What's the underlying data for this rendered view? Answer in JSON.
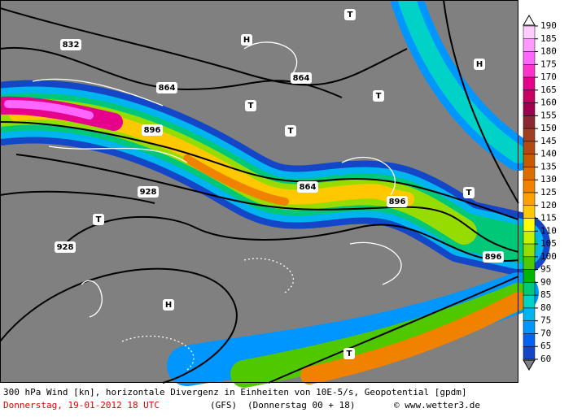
{
  "map_labels": [
    "832",
    "864",
    "864",
    "896",
    "864",
    "896",
    "928",
    "928",
    "896",
    "H",
    "H",
    "H",
    "T",
    "T",
    "T",
    "T",
    "T",
    "T",
    "T"
  ],
  "legend": {
    "levels": [
      190,
      185,
      180,
      175,
      170,
      165,
      160,
      155,
      150,
      145,
      140,
      135,
      130,
      125,
      120,
      115,
      110,
      105,
      100,
      95,
      90,
      85,
      80,
      75,
      70,
      65,
      60
    ],
    "colors": [
      "#ffccff",
      "#ff99ff",
      "#ff66ff",
      "#ff33cc",
      "#e6008c",
      "#c80064",
      "#a00050",
      "#8c2832",
      "#a04020",
      "#b44a10",
      "#c85a00",
      "#dc6e00",
      "#f08200",
      "#ffa000",
      "#ffc800",
      "#ffff00",
      "#c8f000",
      "#96dc00",
      "#50c800",
      "#00b400",
      "#00c878",
      "#00d2c8",
      "#00b4f0",
      "#0096ff",
      "#0064f0",
      "#1446c8"
    ]
  },
  "caption": {
    "line1": "300 hPa Wind [kn], horizontale Divergenz in Einheiten von 10E-5/s, Geopotential [gpdm]",
    "date": "Donnerstag, 19-01-2012  18 UTC",
    "model": "(GFS)",
    "run": "(Donnerstag 00 + 18)",
    "credit": "© www.wetter3.de"
  }
}
